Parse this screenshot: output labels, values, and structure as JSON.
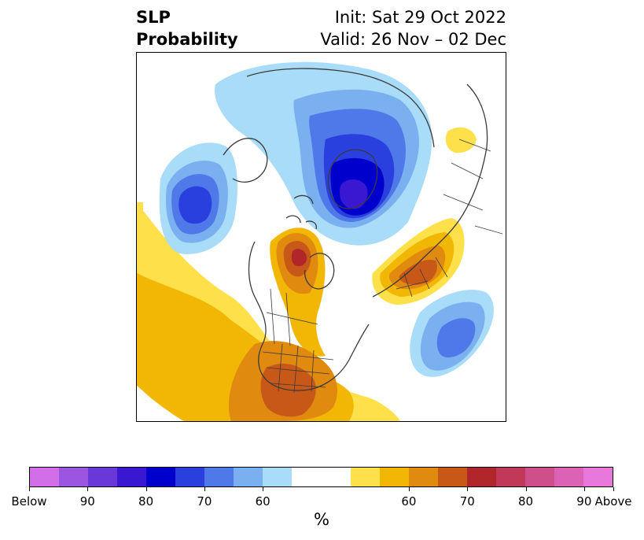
{
  "title": {
    "left_line1": "SLP",
    "left_line2": "Probability",
    "right_line1": "Init: Sat 29 Oct 2022",
    "right_line2": "Valid: 26 Nov – 02 Dec"
  },
  "colorbar": {
    "label": "%",
    "ticks": [
      "Below",
      "90",
      "80",
      "70",
      "60",
      "60",
      "70",
      "80",
      "90",
      "Above"
    ],
    "below_colors": [
      "#d16ee8",
      "#9b55e0",
      "#6a38d9",
      "#3a18d2",
      "#0000cd",
      "#2a40de",
      "#4f78e8",
      "#7bb0f0",
      "#a9dcf8"
    ],
    "neutral_color": "#ffffff",
    "above_colors": [
      "#fde04a",
      "#f2b705",
      "#e08a10",
      "#c85818",
      "#b0262a",
      "#c13858",
      "#cf4f8a",
      "#dc62b6",
      "#e878dc"
    ]
  },
  "map": {
    "projection": "north-polar-stereographic",
    "field": "SLP probability"
  }
}
